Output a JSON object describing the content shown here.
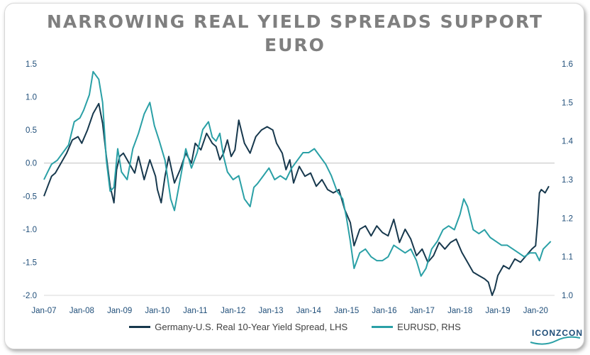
{
  "chart_data": {
    "type": "line",
    "title": "NARROWING REAL YIELD SPREADS SUPPORT",
    "title_line2": "EURO",
    "x_tick_labels": [
      "Jan-07",
      "Jan-08",
      "Jan-09",
      "Jan-10",
      "Jan-11",
      "Jan-12",
      "Jan-13",
      "Jan-14",
      "Jan-15",
      "Jan-16",
      "Jan-17",
      "Jan-18",
      "Jan-19",
      "Jan-20"
    ],
    "y_left_ticks": [
      "1.5",
      "1.0",
      "0.5",
      "0.0",
      "-0.5",
      "-1.0",
      "-1.5",
      "-2.0"
    ],
    "y_right_ticks": [
      "1.6",
      "1.5",
      "1.4",
      "1.3",
      "1.2",
      "1.1",
      "1.0"
    ],
    "ylim_left": [
      -2.0,
      1.5
    ],
    "ylim_right": [
      1.0,
      1.6
    ],
    "xlim": [
      2007.0,
      2020.5
    ],
    "grid": "horizontal line at 0.0",
    "legend_placement": "bottom",
    "series": [
      {
        "name": "Germany-U.S. Real 10-Year Yield Spread, LHS",
        "axis": "left",
        "color": "#17384d",
        "x": [
          2007.0,
          2007.1,
          2007.2,
          2007.3,
          2007.45,
          2007.6,
          2007.75,
          2007.9,
          2008.0,
          2008.15,
          2008.3,
          2008.45,
          2008.55,
          2008.65,
          2008.75,
          2008.85,
          2008.92,
          2009.0,
          2009.1,
          2009.25,
          2009.4,
          2009.5,
          2009.65,
          2009.8,
          2009.95,
          2010.0,
          2010.1,
          2010.2,
          2010.3,
          2010.45,
          2010.6,
          2010.75,
          2010.9,
          2011.0,
          2011.15,
          2011.3,
          2011.45,
          2011.55,
          2011.65,
          2011.75,
          2011.85,
          2011.95,
          2012.05,
          2012.15,
          2012.3,
          2012.45,
          2012.6,
          2012.75,
          2012.9,
          2013.05,
          2013.15,
          2013.3,
          2013.4,
          2013.5,
          2013.6,
          2013.75,
          2013.9,
          2014.05,
          2014.2,
          2014.35,
          2014.5,
          2014.65,
          2014.8,
          2014.95,
          2015.1,
          2015.2,
          2015.35,
          2015.5,
          2015.65,
          2015.8,
          2015.95,
          2016.1,
          2016.25,
          2016.4,
          2016.55,
          2016.7,
          2016.85,
          2017.0,
          2017.15,
          2017.3,
          2017.45,
          2017.6,
          2017.75,
          2017.9,
          2018.05,
          2018.2,
          2018.35,
          2018.5,
          2018.65,
          2018.75,
          2018.85,
          2018.92,
          2019.0,
          2019.15,
          2019.3,
          2019.45,
          2019.6,
          2019.75,
          2019.9,
          2020.0,
          2020.05,
          2020.1,
          2020.15,
          2020.25,
          2020.35
        ],
        "values": [
          -0.5,
          -0.35,
          -0.2,
          -0.15,
          0.0,
          0.15,
          0.35,
          0.4,
          0.3,
          0.5,
          0.75,
          0.9,
          0.6,
          0.1,
          -0.35,
          -0.6,
          -0.1,
          0.1,
          0.15,
          0.0,
          -0.15,
          0.1,
          -0.25,
          0.05,
          -0.2,
          -0.4,
          -0.6,
          -0.2,
          0.1,
          -0.3,
          -0.1,
          0.15,
          0.0,
          0.3,
          0.2,
          0.45,
          0.3,
          0.25,
          0.05,
          0.15,
          0.35,
          0.1,
          0.2,
          0.65,
          0.3,
          0.15,
          0.4,
          0.5,
          0.55,
          0.5,
          0.3,
          0.15,
          -0.1,
          0.05,
          -0.3,
          -0.05,
          -0.2,
          -0.15,
          -0.35,
          -0.25,
          -0.4,
          -0.45,
          -0.4,
          -0.7,
          -0.9,
          -1.25,
          -1.0,
          -0.95,
          -1.1,
          -0.95,
          -1.05,
          -1.1,
          -0.85,
          -1.2,
          -1.0,
          -1.15,
          -1.4,
          -1.3,
          -1.5,
          -1.4,
          -1.2,
          -1.3,
          -1.2,
          -1.15,
          -1.35,
          -1.5,
          -1.65,
          -1.7,
          -1.75,
          -1.8,
          -2.0,
          -1.9,
          -1.7,
          -1.55,
          -1.6,
          -1.45,
          -1.5,
          -1.4,
          -1.3,
          -1.25,
          -0.9,
          -0.45,
          -0.4,
          -0.45,
          -0.35
        ]
      },
      {
        "name": "EURUSD, RHS",
        "axis": "right",
        "color": "#2aa0a6",
        "x": [
          2007.0,
          2007.1,
          2007.2,
          2007.35,
          2007.5,
          2007.65,
          2007.8,
          2007.95,
          2008.05,
          2008.2,
          2008.3,
          2008.45,
          2008.55,
          2008.65,
          2008.75,
          2008.85,
          2008.95,
          2009.05,
          2009.2,
          2009.35,
          2009.5,
          2009.65,
          2009.8,
          2009.92,
          2010.05,
          2010.2,
          2010.35,
          2010.45,
          2010.6,
          2010.75,
          2010.9,
          2011.05,
          2011.2,
          2011.35,
          2011.45,
          2011.55,
          2011.65,
          2011.75,
          2011.85,
          2012.0,
          2012.15,
          2012.3,
          2012.45,
          2012.55,
          2012.65,
          2012.8,
          2012.95,
          2013.1,
          2013.25,
          2013.4,
          2013.55,
          2013.7,
          2013.85,
          2014.0,
          2014.15,
          2014.3,
          2014.45,
          2014.6,
          2014.75,
          2014.9,
          2015.0,
          2015.1,
          2015.2,
          2015.35,
          2015.5,
          2015.65,
          2015.8,
          2015.95,
          2016.1,
          2016.25,
          2016.4,
          2016.55,
          2016.7,
          2016.85,
          2016.97,
          2017.1,
          2017.25,
          2017.4,
          2017.55,
          2017.7,
          2017.85,
          2018.0,
          2018.1,
          2018.2,
          2018.35,
          2018.5,
          2018.65,
          2018.8,
          2018.95,
          2019.1,
          2019.25,
          2019.4,
          2019.55,
          2019.7,
          2019.85,
          2020.0,
          2020.1,
          2020.2,
          2020.3,
          2020.4
        ],
        "values": [
          1.3,
          1.32,
          1.34,
          1.35,
          1.37,
          1.39,
          1.45,
          1.46,
          1.48,
          1.52,
          1.58,
          1.56,
          1.5,
          1.35,
          1.27,
          1.28,
          1.38,
          1.32,
          1.3,
          1.38,
          1.42,
          1.47,
          1.5,
          1.44,
          1.4,
          1.35,
          1.25,
          1.22,
          1.3,
          1.38,
          1.33,
          1.37,
          1.43,
          1.45,
          1.41,
          1.4,
          1.42,
          1.36,
          1.32,
          1.3,
          1.31,
          1.25,
          1.23,
          1.28,
          1.29,
          1.31,
          1.33,
          1.3,
          1.31,
          1.3,
          1.33,
          1.35,
          1.37,
          1.37,
          1.38,
          1.36,
          1.34,
          1.31,
          1.27,
          1.25,
          1.2,
          1.14,
          1.07,
          1.11,
          1.12,
          1.1,
          1.09,
          1.09,
          1.1,
          1.13,
          1.12,
          1.11,
          1.12,
          1.09,
          1.05,
          1.07,
          1.12,
          1.14,
          1.17,
          1.18,
          1.17,
          1.21,
          1.25,
          1.23,
          1.17,
          1.16,
          1.17,
          1.15,
          1.14,
          1.13,
          1.13,
          1.12,
          1.11,
          1.1,
          1.11,
          1.11,
          1.09,
          1.12,
          1.13,
          1.14
        ]
      }
    ]
  },
  "legend": {
    "item1": "Germany-U.S. Real 10-Year Yield Spread, LHS",
    "item2": "EURUSD, RHS"
  },
  "logo": {
    "text": "ICONZCON",
    "icon": "wave-logo-icon"
  },
  "colors": {
    "title": "#7f7f7f",
    "ticks": "#1f4e79",
    "spread": "#17384d",
    "eurusd": "#2aa0a6",
    "zero_line": "#bfbfbf"
  }
}
